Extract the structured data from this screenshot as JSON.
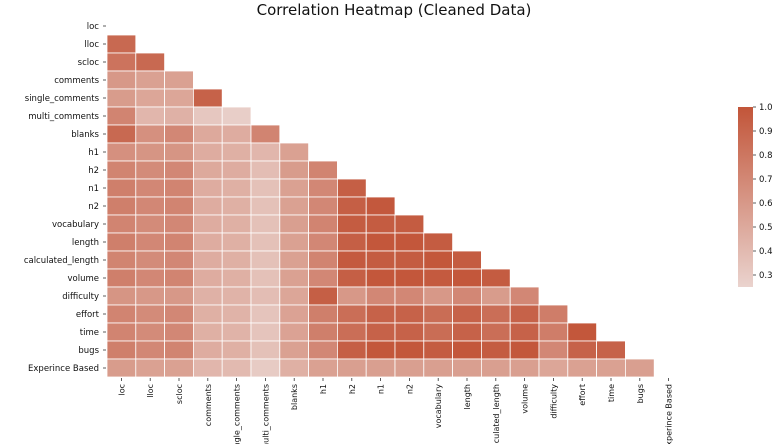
{
  "chart_data": {
    "type": "heatmap",
    "title": "Correlation Heatmap (Cleaned Data)",
    "mask": "upper-triangle-and-diagonal",
    "labels": [
      "loc",
      "lloc",
      "scloc",
      "comments",
      "single_comments",
      "multi_comments",
      "blanks",
      "h1",
      "h2",
      "n1",
      "n2",
      "vocabulary",
      "length",
      "calculated_length",
      "volume",
      "difficulty",
      "effort",
      "time",
      "bugs",
      "Experince Based"
    ],
    "matrix": [
      [],
      [
        0.88
      ],
      [
        0.82,
        0.88
      ],
      [
        0.6,
        0.55,
        0.55
      ],
      [
        0.58,
        0.52,
        0.52,
        0.92
      ],
      [
        0.72,
        0.42,
        0.45,
        0.32,
        0.28
      ],
      [
        0.88,
        0.65,
        0.7,
        0.5,
        0.48,
        0.72
      ],
      [
        0.65,
        0.62,
        0.62,
        0.48,
        0.46,
        0.42,
        0.55
      ],
      [
        0.72,
        0.68,
        0.7,
        0.5,
        0.48,
        0.38,
        0.58,
        0.72
      ],
      [
        0.75,
        0.7,
        0.72,
        0.48,
        0.46,
        0.36,
        0.55,
        0.7,
        0.94
      ],
      [
        0.75,
        0.7,
        0.72,
        0.48,
        0.46,
        0.36,
        0.55,
        0.7,
        0.94,
        0.98
      ],
      [
        0.72,
        0.68,
        0.7,
        0.48,
        0.46,
        0.36,
        0.56,
        0.72,
        0.96,
        0.96,
        0.96
      ],
      [
        0.75,
        0.7,
        0.72,
        0.48,
        0.46,
        0.36,
        0.55,
        0.7,
        0.94,
        0.99,
        0.99,
        0.96
      ],
      [
        0.72,
        0.68,
        0.7,
        0.48,
        0.46,
        0.36,
        0.55,
        0.72,
        0.97,
        0.96,
        0.96,
        0.99,
        0.96
      ],
      [
        0.75,
        0.7,
        0.72,
        0.48,
        0.46,
        0.36,
        0.55,
        0.7,
        0.94,
        0.99,
        0.99,
        0.97,
        0.99,
        0.96
      ],
      [
        0.62,
        0.6,
        0.6,
        0.45,
        0.44,
        0.38,
        0.52,
        0.94,
        0.6,
        0.7,
        0.7,
        0.6,
        0.7,
        0.58,
        0.7
      ],
      [
        0.72,
        0.68,
        0.7,
        0.46,
        0.44,
        0.34,
        0.54,
        0.75,
        0.85,
        0.92,
        0.92,
        0.86,
        0.92,
        0.85,
        0.92,
        0.76
      ],
      [
        0.72,
        0.68,
        0.7,
        0.46,
        0.44,
        0.34,
        0.54,
        0.75,
        0.85,
        0.92,
        0.92,
        0.86,
        0.92,
        0.85,
        0.92,
        0.76,
        0.99
      ],
      [
        0.75,
        0.7,
        0.72,
        0.48,
        0.46,
        0.36,
        0.55,
        0.7,
        0.94,
        0.99,
        0.99,
        0.96,
        0.99,
        0.96,
        0.99,
        0.7,
        0.92,
        0.92
      ],
      [
        0.58,
        0.55,
        0.55,
        0.42,
        0.4,
        0.3,
        0.46,
        0.55,
        0.56,
        0.56,
        0.56,
        0.56,
        0.56,
        0.56,
        0.56,
        0.52,
        0.55,
        0.55,
        0.56
      ]
    ],
    "colorbar": {
      "min": 0.25,
      "max": 1.0,
      "ticks": [
        "1.0",
        "0.9",
        "0.8",
        "0.7",
        "0.6",
        "0.5",
        "0.4",
        "0.3"
      ],
      "low_color": "#ead3ce",
      "high_color": "#c25539"
    }
  }
}
